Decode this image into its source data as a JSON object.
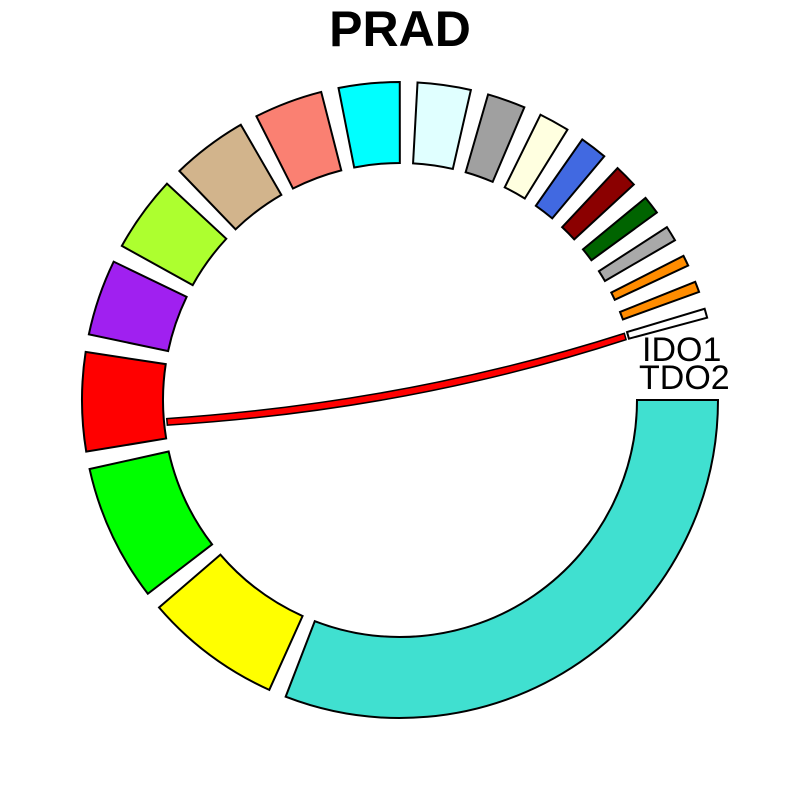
{
  "chart_data": {
    "type": "chord",
    "title": "PRAD",
    "sectors": [
      {
        "value": 40.0,
        "color": "#40E0D0"
      },
      {
        "value": 9.0,
        "color": "#FFFF00"
      },
      {
        "value": 9.0,
        "color": "#00FF00"
      },
      {
        "value": 6.5,
        "color": "#FF0000"
      },
      {
        "value": 5.0,
        "color": "#A020F0"
      },
      {
        "value": 5.0,
        "color": "#ADFF2F"
      },
      {
        "value": 5.0,
        "color": "#D2B48C"
      },
      {
        "value": 4.5,
        "color": "#FA8072"
      },
      {
        "value": 4.0,
        "color": "#00FFFF"
      },
      {
        "value": 3.5,
        "color": "#E0FFFF"
      },
      {
        "value": 2.5,
        "color": "#A0A0A0"
      },
      {
        "value": 2.0,
        "color": "#FFFFE0"
      },
      {
        "value": 1.8,
        "color": "#4169E1"
      },
      {
        "value": 1.5,
        "color": "#8B0000"
      },
      {
        "value": 1.2,
        "color": "#006400"
      },
      {
        "value": 1.0,
        "color": "#A9A9A9"
      },
      {
        "value": 0.7,
        "color": "#FF8C00"
      },
      {
        "value": 0.7,
        "color": "#FF8C00"
      },
      {
        "value": 0.6,
        "color": "#FFFFFF"
      }
    ],
    "labels": [
      "IDO1",
      "TDO2"
    ],
    "links": [
      {
        "from_sector": 3,
        "to_sector": 18,
        "color": "#FF0000"
      }
    ]
  }
}
